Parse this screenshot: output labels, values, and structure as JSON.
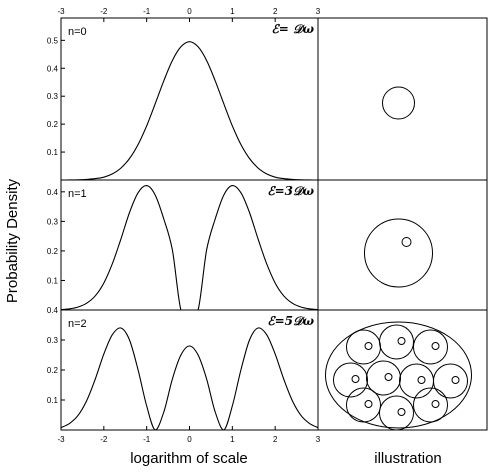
{
  "chart_data": {
    "type": "line",
    "ylabel": "Probability Density",
    "xlabel": "logarithm of scale",
    "right_label": "illustration",
    "xlim": [
      -3,
      3
    ],
    "x_ticks": [
      "-3",
      "-2",
      "-1",
      "0",
      "1",
      "2",
      "3"
    ],
    "grid": false,
    "panels": [
      {
        "label": "n=0",
        "energy": "ℰ= 𝒟ω",
        "ylim": [
          0,
          0.58
        ],
        "y_ticks": [
          "0.1",
          "0.2",
          "0.3",
          "0.4",
          "0.5"
        ],
        "x": [
          -3.0,
          -2.8,
          -2.6,
          -2.4,
          -2.2,
          -2.0,
          -1.8,
          -1.6,
          -1.4,
          -1.2,
          -1.0,
          -0.8,
          -0.6,
          -0.4,
          -0.2,
          0.0,
          0.2,
          0.4,
          0.6,
          0.8,
          1.0,
          1.2,
          1.4,
          1.6,
          1.8,
          2.0,
          2.2,
          2.4,
          2.6,
          2.8,
          3.0
        ],
        "y": [
          0.0001,
          0.0002,
          0.0007,
          0.002,
          0.005,
          0.01,
          0.022,
          0.043,
          0.077,
          0.127,
          0.194,
          0.273,
          0.355,
          0.428,
          0.477,
          0.495,
          0.477,
          0.428,
          0.355,
          0.273,
          0.194,
          0.127,
          0.077,
          0.043,
          0.022,
          0.01,
          0.005,
          0.002,
          0.0007,
          0.0002,
          0.0001
        ],
        "illustration": {
          "outer_circle": false,
          "circles": 1,
          "dots": false
        }
      },
      {
        "label": "n=1",
        "energy": "ℰ=3𝒟ω",
        "ylim": [
          0,
          0.44
        ],
        "y_ticks": [
          "0.1",
          "0.2",
          "0.3",
          "0.4"
        ],
        "x": [
          -3.0,
          -2.8,
          -2.6,
          -2.4,
          -2.2,
          -2.0,
          -1.8,
          -1.6,
          -1.4,
          -1.2,
          -1.0,
          -0.8,
          -0.6,
          -0.4,
          -0.2,
          0.0,
          0.2,
          0.4,
          0.6,
          0.8,
          1.0,
          1.2,
          1.4,
          1.6,
          1.8,
          2.0,
          2.2,
          2.4,
          2.6,
          2.8,
          3.0
        ],
        "y": [
          0.0014,
          0.004,
          0.01,
          0.023,
          0.048,
          0.091,
          0.157,
          0.241,
          0.33,
          0.397,
          0.421,
          0.389,
          0.308,
          0.203,
          0.0,
          0.0,
          0.0,
          0.203,
          0.308,
          0.389,
          0.421,
          0.397,
          0.33,
          0.241,
          0.157,
          0.091,
          0.048,
          0.023,
          0.01,
          0.004,
          0.0014
        ],
        "illustration": {
          "outer_circle": false,
          "circles": 1,
          "dots": true
        }
      },
      {
        "label": "n=2",
        "energy": "ℰ=5𝒟ω",
        "ylim": [
          0,
          0.4
        ],
        "y_ticks": [
          "0.1",
          "0.2",
          "0.3",
          "0.4"
        ],
        "x": [
          -3.0,
          -2.8,
          -2.6,
          -2.4,
          -2.2,
          -2.0,
          -1.8,
          -1.6,
          -1.4,
          -1.2,
          -1.0,
          -0.8,
          -0.6,
          -0.4,
          -0.2,
          0.0,
          0.2,
          0.4,
          0.6,
          0.8,
          1.0,
          1.2,
          1.4,
          1.6,
          1.8,
          2.0,
          2.2,
          2.4,
          2.6,
          2.8,
          3.0
        ],
        "y": [
          0.008,
          0.022,
          0.049,
          0.098,
          0.17,
          0.253,
          0.318,
          0.34,
          0.3,
          0.2,
          0.08,
          0.0,
          0.06,
          0.17,
          0.25,
          0.28,
          0.25,
          0.17,
          0.06,
          0.0,
          0.08,
          0.2,
          0.3,
          0.34,
          0.318,
          0.253,
          0.17,
          0.098,
          0.049,
          0.022,
          0.008
        ],
        "illustration": {
          "outer_circle": true,
          "circles": 10,
          "dots": true
        }
      }
    ]
  }
}
